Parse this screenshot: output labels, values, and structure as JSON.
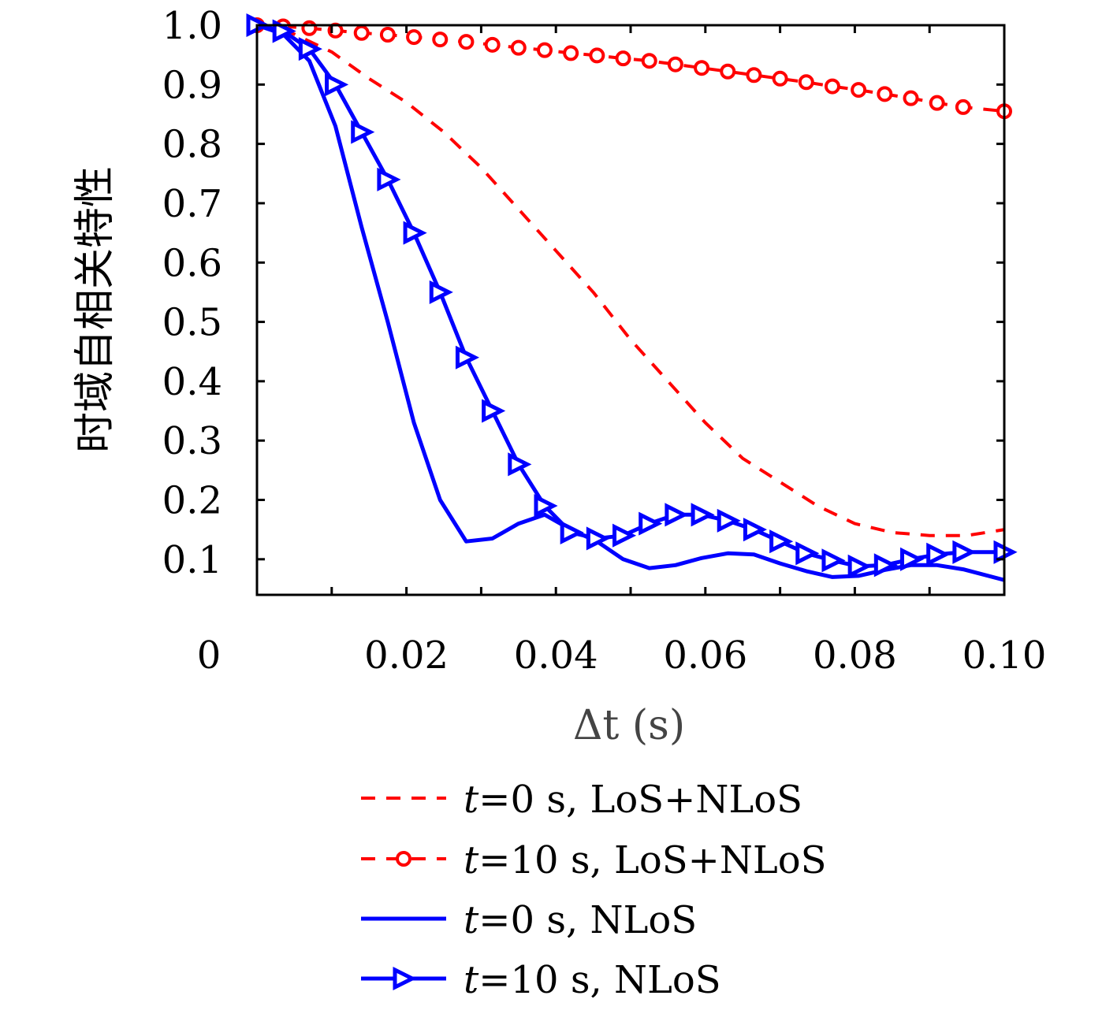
{
  "chart_data": {
    "type": "line",
    "title": "",
    "xlabel": "Δt (s)",
    "ylabel": "时域自相关特性",
    "xlim": [
      0,
      0.1
    ],
    "ylim": [
      0.04,
      1.0
    ],
    "x_ticks": [
      0,
      0.02,
      0.04,
      0.06,
      0.08,
      0.1
    ],
    "x_tick_labels": [
      "0",
      "0.02",
      "0.04",
      "0.06",
      "0.08",
      "0.10"
    ],
    "y_ticks": [
      0.1,
      0.2,
      0.3,
      0.4,
      0.5,
      0.6,
      0.7,
      0.8,
      0.9,
      1.0
    ],
    "y_tick_labels": [
      "0.1",
      "0.2",
      "0.3",
      "0.4",
      "0.5",
      "0.6",
      "0.7",
      "0.8",
      "0.9",
      "1.0"
    ],
    "grid": false,
    "legend_position": "below",
    "series": [
      {
        "name": "t=0 s, LoS+NLoS",
        "legend_italic": "t",
        "legend_rest": "=0 s, LoS+NLoS",
        "color": "#ff0000",
        "style": "dashed",
        "marker": "none",
        "x": [
          0,
          0.005,
          0.01,
          0.015,
          0.02,
          0.025,
          0.03,
          0.035,
          0.04,
          0.045,
          0.05,
          0.055,
          0.06,
          0.065,
          0.07,
          0.075,
          0.08,
          0.085,
          0.09,
          0.095,
          0.1
        ],
        "y": [
          1.0,
          0.985,
          0.955,
          0.91,
          0.87,
          0.82,
          0.76,
          0.69,
          0.62,
          0.55,
          0.47,
          0.4,
          0.33,
          0.27,
          0.23,
          0.19,
          0.16,
          0.145,
          0.14,
          0.14,
          0.15
        ]
      },
      {
        "name": "t=10 s, LoS+NLoS",
        "legend_italic": "t",
        "legend_rest": "=10 s, LoS+NLoS",
        "color": "#ff0000",
        "style": "dashed",
        "marker": "circle",
        "x": [
          0,
          0.0035,
          0.007,
          0.0105,
          0.014,
          0.0175,
          0.021,
          0.0245,
          0.028,
          0.0315,
          0.035,
          0.0385,
          0.042,
          0.0455,
          0.049,
          0.0525,
          0.056,
          0.0595,
          0.063,
          0.0665,
          0.07,
          0.0735,
          0.077,
          0.0805,
          0.084,
          0.0875,
          0.091,
          0.0945,
          0.1
        ],
        "y": [
          1.0,
          0.998,
          0.995,
          0.991,
          0.987,
          0.984,
          0.98,
          0.976,
          0.972,
          0.967,
          0.962,
          0.958,
          0.953,
          0.949,
          0.944,
          0.94,
          0.934,
          0.928,
          0.922,
          0.916,
          0.91,
          0.904,
          0.897,
          0.891,
          0.884,
          0.877,
          0.869,
          0.862,
          0.855
        ]
      },
      {
        "name": "t=0 s, NLoS",
        "legend_italic": "t",
        "legend_rest": "=0 s, NLoS",
        "color": "#0000ff",
        "style": "solid",
        "marker": "none",
        "x": [
          0,
          0.0035,
          0.007,
          0.0105,
          0.014,
          0.0175,
          0.021,
          0.0245,
          0.028,
          0.0315,
          0.035,
          0.0385,
          0.042,
          0.0455,
          0.049,
          0.0525,
          0.056,
          0.0595,
          0.063,
          0.0665,
          0.07,
          0.0735,
          0.077,
          0.0805,
          0.084,
          0.0875,
          0.091,
          0.0945,
          0.1
        ],
        "y": [
          1.0,
          0.985,
          0.94,
          0.83,
          0.66,
          0.5,
          0.33,
          0.2,
          0.13,
          0.135,
          0.16,
          0.175,
          0.15,
          0.13,
          0.1,
          0.085,
          0.09,
          0.102,
          0.11,
          0.108,
          0.093,
          0.08,
          0.07,
          0.072,
          0.082,
          0.09,
          0.09,
          0.083,
          0.065
        ]
      },
      {
        "name": "t=10 s, NLoS",
        "legend_italic": "t",
        "legend_rest": "=10 s, NLoS",
        "color": "#0000ff",
        "style": "solid",
        "marker": "triangle-right",
        "x": [
          0,
          0.0035,
          0.007,
          0.0105,
          0.014,
          0.0175,
          0.021,
          0.0245,
          0.028,
          0.0315,
          0.035,
          0.0385,
          0.042,
          0.0455,
          0.049,
          0.0525,
          0.056,
          0.0595,
          0.063,
          0.0665,
          0.07,
          0.0735,
          0.077,
          0.0805,
          0.084,
          0.0875,
          0.091,
          0.0945,
          0.1
        ],
        "y": [
          1.0,
          0.99,
          0.96,
          0.9,
          0.82,
          0.74,
          0.65,
          0.55,
          0.44,
          0.35,
          0.26,
          0.19,
          0.145,
          0.135,
          0.14,
          0.16,
          0.175,
          0.175,
          0.165,
          0.15,
          0.13,
          0.11,
          0.098,
          0.088,
          0.09,
          0.1,
          0.108,
          0.112,
          0.112
        ]
      }
    ]
  }
}
